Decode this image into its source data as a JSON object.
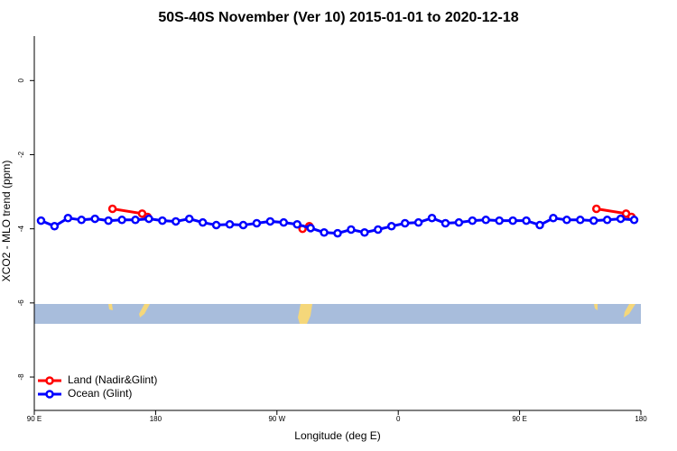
{
  "chart_data": {
    "type": "line",
    "title": "50S-40S November (Ver 10)   2015-01-01 to 2020-12-18",
    "x_label": "Longitude (deg E)",
    "y_label": "XCO2 - MLO trend (ppm)",
    "xlim": [
      90,
      540
    ],
    "xticks": [
      {
        "value": 90,
        "label": "90 E"
      },
      180,
      {
        "value": 270,
        "label": "90 W"
      },
      {
        "value": 360,
        "label": "0"
      },
      {
        "value": 450,
        "label": "90 E"
      },
      {
        "value": 540,
        "label": "180"
      }
    ],
    "ylim": [
      -8.9,
      1.2
    ],
    "yticks": [
      0,
      -2,
      -4,
      -6,
      -8
    ],
    "legend": "bottom-left",
    "series": [
      {
        "name": "Land (Nadir&Glint)",
        "color": "#ff0000",
        "x": [
          148,
          170,
          174,
          289,
          294,
          507,
          529,
          533
        ],
        "values": [
          -3.46,
          -3.59,
          -3.68,
          -4.0,
          -3.93,
          -3.46,
          -3.59,
          -3.68
        ]
      },
      {
        "name": "Ocean (Glint)",
        "color": "#0000ff",
        "x": [
          95,
          105,
          115,
          125,
          135,
          145,
          155,
          165,
          175,
          185,
          195,
          205,
          215,
          225,
          235,
          245,
          255,
          265,
          275,
          285,
          295,
          305,
          315,
          325,
          335,
          345,
          355,
          365,
          375,
          385,
          395,
          405,
          415,
          425,
          435,
          445,
          455,
          465,
          475,
          485,
          495,
          505,
          515,
          525,
          535
        ],
        "values": [
          -3.78,
          -3.93,
          -3.71,
          -3.76,
          -3.73,
          -3.78,
          -3.76,
          -3.76,
          -3.73,
          -3.78,
          -3.8,
          -3.73,
          -3.83,
          -3.9,
          -3.88,
          -3.9,
          -3.85,
          -3.8,
          -3.83,
          -3.88,
          -3.98,
          -4.1,
          -4.12,
          -4.02,
          -4.1,
          -4.02,
          -3.93,
          -3.85,
          -3.83,
          -3.71,
          -3.85,
          -3.83,
          -3.78,
          -3.76,
          -3.78,
          -3.78,
          -3.78,
          -3.9,
          -3.71,
          -3.76,
          -3.76,
          -3.78,
          -3.76,
          -3.73,
          -3.76
        ]
      }
    ]
  }
}
